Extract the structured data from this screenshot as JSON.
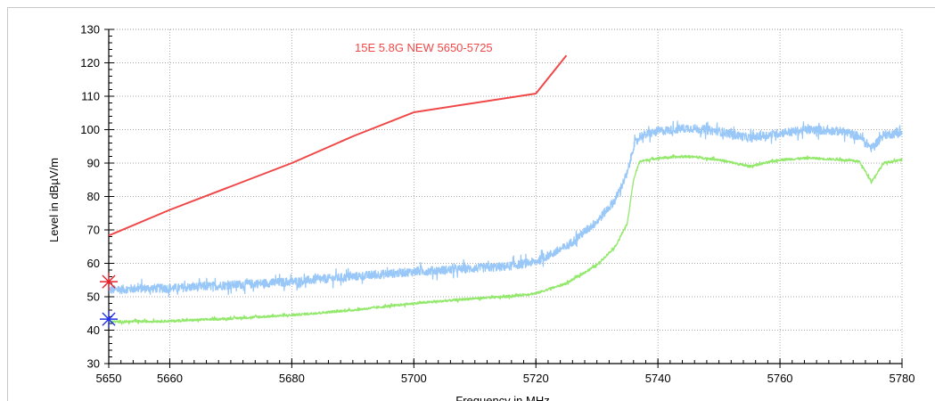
{
  "chart_data": {
    "type": "line",
    "xlabel": "Frequency in MHz",
    "ylabel": "Level in dBµV/m",
    "xlim": [
      5650,
      5780
    ],
    "ylim": [
      30,
      130
    ],
    "x_ticks": [
      5650,
      5660,
      5680,
      5700,
      5720,
      5740,
      5760,
      5780
    ],
    "y_ticks": [
      30,
      40,
      50,
      60,
      70,
      80,
      90,
      100,
      110,
      120,
      130
    ],
    "grid": true,
    "annotation": {
      "text": "15E 5.8G NEW 5650-5725",
      "color": "#f04848"
    },
    "series": [
      {
        "id": "limit",
        "color": "#f04848",
        "noise": 0,
        "x": [
          5650,
          5660,
          5670,
          5680,
          5690,
          5700,
          5710,
          5720,
          5722.5,
          5725
        ],
        "y": [
          68.3,
          76,
          83,
          90,
          98,
          105.2,
          108,
          110.8,
          116.5,
          122.2
        ]
      },
      {
        "id": "peak",
        "color": "#99c8f8",
        "noise": 1.3,
        "x": [
          5650,
          5655,
          5660,
          5670,
          5680,
          5690,
          5700,
          5710,
          5715,
          5720,
          5725,
          5730,
          5733,
          5735,
          5736,
          5737,
          5740,
          5745,
          5750,
          5755,
          5760,
          5765,
          5770,
          5773,
          5775,
          5777,
          5780
        ],
        "y": [
          52,
          52.5,
          52.5,
          53.5,
          54.5,
          56,
          57.5,
          58.5,
          59,
          60.5,
          65,
          72.5,
          79,
          87,
          95,
          98,
          99.5,
          100.5,
          99.5,
          97.5,
          99,
          100,
          99.5,
          98,
          94.5,
          98.5,
          99
        ]
      },
      {
        "id": "average",
        "color": "#92e86a",
        "noise": 0.35,
        "x": [
          5650,
          5660,
          5670,
          5680,
          5690,
          5700,
          5710,
          5715,
          5720,
          5725,
          5730,
          5733,
          5735,
          5736,
          5737,
          5740,
          5745,
          5750,
          5755,
          5760,
          5765,
          5770,
          5773,
          5775,
          5777,
          5780
        ],
        "y": [
          42.5,
          42.7,
          43.5,
          44.5,
          46,
          48,
          49.5,
          50,
          51,
          54,
          59.5,
          65,
          72,
          85,
          90.5,
          91.5,
          92,
          91,
          89,
          91,
          91.5,
          91,
          90.5,
          84.5,
          90,
          91
        ]
      }
    ],
    "markers": [
      {
        "name": "red-marker",
        "x": 5650,
        "y": 54.5,
        "color": "#e8202c"
      },
      {
        "name": "blue-marker",
        "x": 5650,
        "y": 43.3,
        "color": "#2030e8"
      }
    ]
  }
}
